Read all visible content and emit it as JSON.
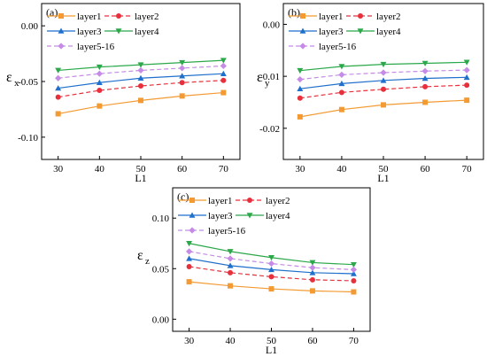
{
  "chart_data": [
    {
      "type": "line",
      "panel_label": "(a)",
      "ylabel": {
        "symbol": "ε",
        "sub": "x"
      },
      "xlabel": "L1",
      "x": [
        30,
        40,
        50,
        60,
        70
      ],
      "xticks": [
        "30",
        "40",
        "50",
        "60",
        "70"
      ],
      "xlim": [
        26,
        74
      ],
      "ylim": [
        -0.12,
        0.02
      ],
      "yticks": [
        -0.1,
        -0.05,
        0.0
      ],
      "ytick_labels": [
        "-0.10",
        "-0.05",
        "0.00"
      ],
      "grid": false,
      "legend_position": "top-left",
      "series": [
        {
          "name": "layer1",
          "color": "#f39a33",
          "marker": "square",
          "dash": "solid",
          "values": [
            -0.079,
            -0.072,
            -0.067,
            -0.063,
            -0.06
          ]
        },
        {
          "name": "layer2",
          "color": "#e8303d",
          "marker": "circle",
          "dash": "dashed",
          "values": [
            -0.064,
            -0.058,
            -0.054,
            -0.051,
            -0.049
          ]
        },
        {
          "name": "layer3",
          "color": "#1f6fcc",
          "marker": "triangle-up",
          "dash": "solid",
          "values": [
            -0.056,
            -0.051,
            -0.047,
            -0.045,
            -0.043
          ]
        },
        {
          "name": "layer4",
          "color": "#2ba84a",
          "marker": "triangle-down",
          "dash": "solid",
          "values": [
            -0.04,
            -0.037,
            -0.035,
            -0.033,
            -0.031
          ]
        },
        {
          "name": "layer5-16",
          "color": "#c58be6",
          "marker": "diamond",
          "dash": "dashed",
          "values": [
            -0.047,
            -0.043,
            -0.04,
            -0.038,
            -0.036
          ]
        }
      ]
    },
    {
      "type": "line",
      "panel_label": "(b)",
      "ylabel": {
        "symbol": "ε",
        "sub": "y"
      },
      "xlabel": "L1",
      "x": [
        30,
        40,
        50,
        60,
        70
      ],
      "xticks": [
        "30",
        "40",
        "50",
        "60",
        "70"
      ],
      "xlim": [
        26,
        74
      ],
      "ylim": [
        -0.026,
        0.004
      ],
      "yticks": [
        -0.02,
        -0.01,
        0.0
      ],
      "ytick_labels": [
        "-0.02",
        "-0.01",
        "0.00"
      ],
      "grid": false,
      "legend_position": "top-left",
      "series": [
        {
          "name": "layer1",
          "color": "#f39a33",
          "marker": "square",
          "dash": "solid",
          "values": [
            -0.0178,
            -0.0164,
            -0.0155,
            -0.015,
            -0.0146
          ]
        },
        {
          "name": "layer2",
          "color": "#e8303d",
          "marker": "circle",
          "dash": "dashed",
          "values": [
            -0.0142,
            -0.0131,
            -0.0125,
            -0.012,
            -0.0117
          ]
        },
        {
          "name": "layer3",
          "color": "#1f6fcc",
          "marker": "triangle-up",
          "dash": "solid",
          "values": [
            -0.0124,
            -0.0114,
            -0.0108,
            -0.0104,
            -0.0102
          ]
        },
        {
          "name": "layer4",
          "color": "#2ba84a",
          "marker": "triangle-down",
          "dash": "solid",
          "values": [
            -0.0089,
            -0.0081,
            -0.0077,
            -0.0075,
            -0.0073
          ]
        },
        {
          "name": "layer5-16",
          "color": "#c58be6",
          "marker": "diamond",
          "dash": "dashed",
          "values": [
            -0.0106,
            -0.0097,
            -0.0093,
            -0.009,
            -0.0088
          ]
        }
      ]
    },
    {
      "type": "line",
      "panel_label": "(c)",
      "ylabel": {
        "symbol": "ε",
        "sub": "z"
      },
      "xlabel": "L1",
      "x": [
        30,
        40,
        50,
        60,
        70
      ],
      "xticks": [
        "30",
        "40",
        "50",
        "60",
        "70"
      ],
      "xlim": [
        26,
        74
      ],
      "ylim": [
        -0.012,
        0.13
      ],
      "yticks": [
        0.0,
        0.05,
        0.1
      ],
      "ytick_labels": [
        "0.00",
        "0.05",
        "0.10"
      ],
      "grid": false,
      "legend_position": "top-left",
      "series": [
        {
          "name": "layer1",
          "color": "#f39a33",
          "marker": "square",
          "dash": "solid",
          "values": [
            0.037,
            0.033,
            0.03,
            0.028,
            0.027
          ]
        },
        {
          "name": "layer2",
          "color": "#e8303d",
          "marker": "circle",
          "dash": "dashed",
          "values": [
            0.052,
            0.046,
            0.042,
            0.039,
            0.038
          ]
        },
        {
          "name": "layer3",
          "color": "#1f6fcc",
          "marker": "triangle-up",
          "dash": "solid",
          "values": [
            0.06,
            0.053,
            0.049,
            0.046,
            0.045
          ]
        },
        {
          "name": "layer4",
          "color": "#2ba84a",
          "marker": "triangle-down",
          "dash": "solid",
          "values": [
            0.075,
            0.067,
            0.061,
            0.056,
            0.054
          ]
        },
        {
          "name": "layer5-16",
          "color": "#c58be6",
          "marker": "diamond",
          "dash": "dashed",
          "values": [
            0.067,
            0.06,
            0.055,
            0.051,
            0.049
          ]
        }
      ]
    }
  ]
}
